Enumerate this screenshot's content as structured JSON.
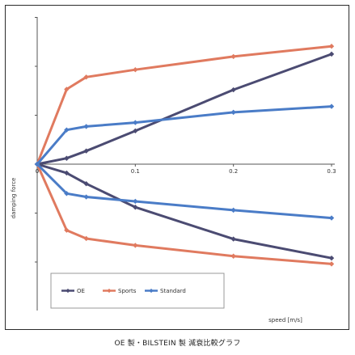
{
  "caption": "OE 製・BILSTEIN 製 減衰比較グラフ",
  "colors": {
    "axis": "#555555",
    "legend_border": "#999999"
  },
  "chart_data": {
    "type": "line",
    "title": "",
    "xlabel": "speed [m/s]",
    "ylabel": "damping force",
    "x_ticks": [
      0,
      0.1,
      0.2,
      0.3
    ],
    "x_tick_labels": [
      "0",
      "0.1",
      "0.2",
      "0.3"
    ],
    "xlim": [
      0,
      0.3
    ],
    "ylim": [
      -3,
      3
    ],
    "grid": false,
    "legend_position": "bottom-left",
    "series": [
      {
        "name": "OE",
        "color": "#4b4b72",
        "x": [
          0,
          0.03,
          0.05,
          0.1,
          0.2,
          0.3
        ],
        "rebound": [
          0,
          0.12,
          0.27,
          0.68,
          1.52,
          2.25
        ],
        "compression": [
          0,
          -0.18,
          -0.4,
          -0.88,
          -1.53,
          -1.92
        ]
      },
      {
        "name": "Sports",
        "color": "#e07a5f",
        "x": [
          0,
          0.03,
          0.05,
          0.1,
          0.2,
          0.3
        ],
        "rebound": [
          0,
          1.53,
          1.78,
          1.93,
          2.2,
          2.41
        ],
        "compression": [
          0,
          -1.35,
          -1.52,
          -1.66,
          -1.88,
          -2.04
        ]
      },
      {
        "name": "Standard",
        "color": "#4a7cc7",
        "x": [
          0,
          0.03,
          0.05,
          0.1,
          0.2,
          0.3
        ],
        "rebound": [
          0,
          0.7,
          0.77,
          0.85,
          1.06,
          1.18
        ],
        "compression": [
          0,
          -0.6,
          -0.67,
          -0.76,
          -0.94,
          -1.1
        ]
      }
    ]
  }
}
